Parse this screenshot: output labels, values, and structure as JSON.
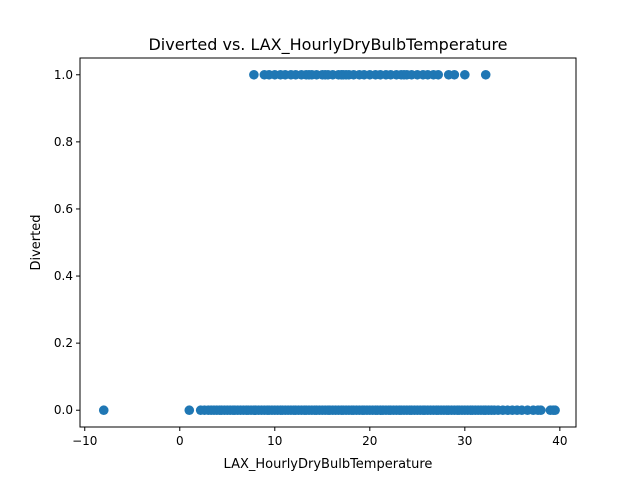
{
  "chart_data": {
    "type": "scatter",
    "title": "Diverted vs. LAX_HourlyDryBulbTemperature",
    "xlabel": "LAX_HourlyDryBulbTemperature",
    "ylabel": "Diverted",
    "xlim": [
      -10.5,
      41.7
    ],
    "ylim": [
      -0.05,
      1.05
    ],
    "xticks": [
      -10,
      0,
      10,
      20,
      30,
      40
    ],
    "yticks": [
      0.0,
      0.2,
      0.4,
      0.6,
      0.8,
      1.0
    ],
    "xtick_labels": [
      "−10",
      "0",
      "10",
      "20",
      "30",
      "40"
    ],
    "ytick_labels": [
      "0.0",
      "0.2",
      "0.4",
      "0.6",
      "0.8",
      "1.0"
    ],
    "grid": false,
    "marker_color": "#1f77b4",
    "series": [
      {
        "values_y0_x": [
          -8.0,
          1.0,
          2.2,
          2.6,
          3.0,
          3.3,
          3.6,
          3.9,
          4.2,
          4.4,
          4.7,
          5.0,
          5.3,
          5.6,
          5.8,
          6.1,
          6.4,
          6.7,
          7.0,
          7.2,
          7.5,
          7.8,
          8.0,
          8.3,
          8.6,
          8.9,
          9.2,
          9.4,
          9.7,
          10.0,
          10.3,
          10.6,
          10.8,
          11.1,
          11.4,
          11.7,
          12.0,
          12.2,
          12.5,
          12.8,
          13.1,
          13.3,
          13.6,
          13.9,
          14.2,
          14.4,
          14.7,
          15.0,
          15.3,
          15.6,
          15.8,
          16.1,
          16.4,
          16.7,
          17.0,
          17.2,
          17.5,
          17.8,
          18.1,
          18.3,
          18.6,
          18.9,
          19.2,
          19.4,
          19.7,
          20.0,
          20.3,
          20.6,
          20.8,
          21.1,
          21.4,
          21.7,
          22.0,
          22.2,
          22.5,
          22.8,
          23.1,
          23.3,
          23.6,
          23.9,
          24.2,
          24.4,
          24.7,
          25.0,
          25.3,
          25.6,
          25.8,
          26.1,
          26.4,
          26.7,
          27.0,
          27.2,
          27.5,
          27.8,
          28.1,
          28.3,
          28.6,
          28.9,
          29.2,
          29.4,
          29.7,
          30.0,
          30.3,
          30.6,
          30.8,
          31.1,
          31.4,
          31.7,
          32.0,
          32.2,
          32.5,
          32.8,
          33.1,
          33.5,
          34.0,
          34.5,
          35.0,
          35.5,
          36.0,
          36.6,
          37.2,
          37.7,
          38.0,
          39.0,
          39.3,
          39.5
        ],
        "values_y1_x": [
          7.8,
          8.9,
          9.4,
          10.0,
          10.6,
          11.1,
          11.7,
          12.2,
          12.8,
          13.3,
          13.6,
          13.9,
          14.4,
          15.0,
          15.3,
          15.6,
          16.1,
          16.7,
          17.0,
          17.2,
          17.5,
          17.8,
          18.3,
          18.9,
          19.4,
          20.0,
          20.6,
          21.1,
          21.7,
          22.2,
          22.8,
          23.3,
          23.6,
          23.9,
          24.4,
          25.0,
          25.6,
          26.1,
          26.7,
          27.2,
          28.3,
          28.9,
          30.0,
          32.2
        ]
      }
    ]
  }
}
